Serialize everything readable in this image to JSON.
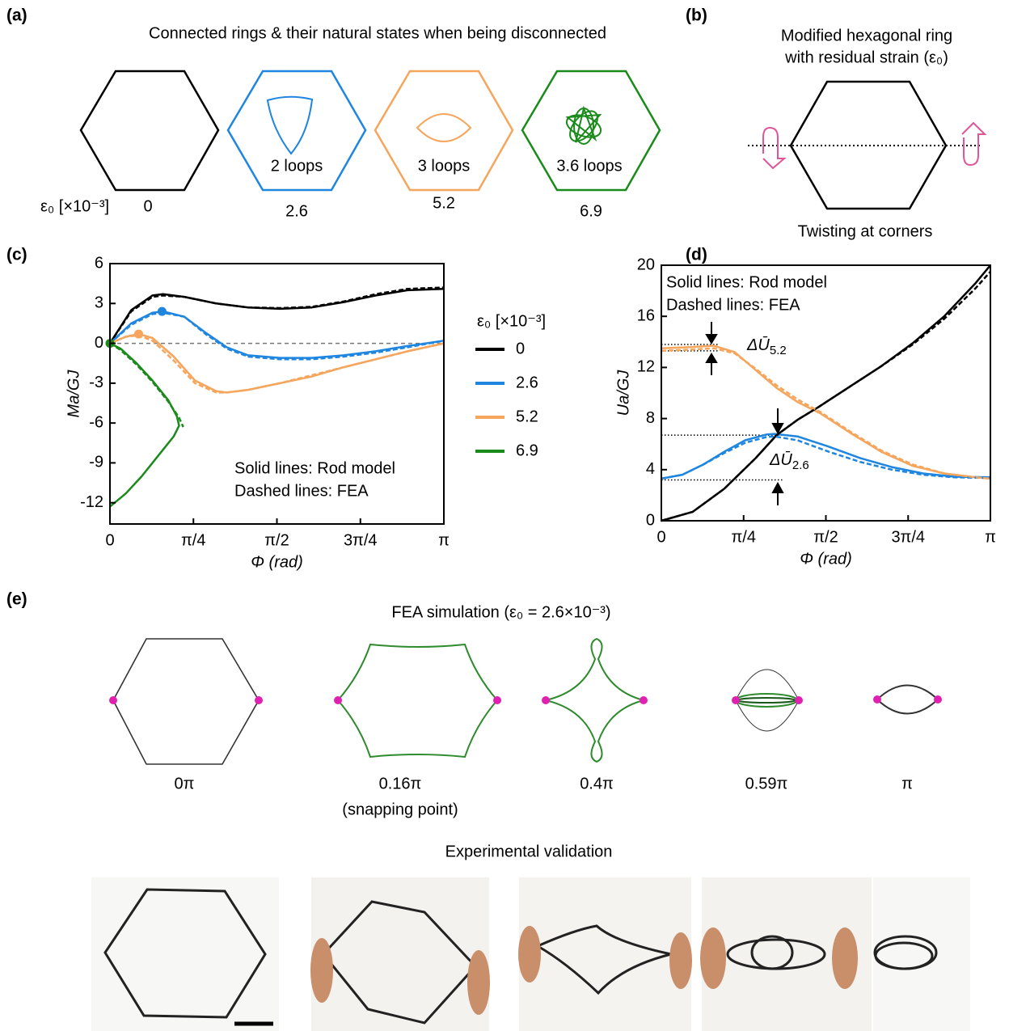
{
  "panels": {
    "a": {
      "label": "(a)",
      "title": "Connected rings & their natural states when being disconnected",
      "row_label": "ε₀ [×10⁻³]",
      "rings": [
        {
          "value": 0
        },
        {
          "value": 2.6,
          "label": "2 loops"
        },
        {
          "value": 5.2,
          "label": "3 loops"
        },
        {
          "value": 6.9,
          "label": "3.6 loops"
        }
      ]
    },
    "b": {
      "label": "(b)",
      "title_lines": [
        "Modified hexagonal ring",
        "with residual strain (ε₀)"
      ],
      "caption": "Twisting at corners"
    },
    "c": {
      "label": "(c)"
    },
    "d": {
      "label": "(d)"
    },
    "e": {
      "label": "(e)",
      "title": "FEA simulation (ε₀ = 2.6×10⁻³)",
      "states": [
        {
          "label": "0π"
        },
        {
          "label": "0.16π",
          "note": "(snapping point)"
        },
        {
          "label": "0.4π"
        },
        {
          "label": "0.59π"
        },
        {
          "label": "π"
        }
      ],
      "subtitle": "Experimental validation"
    }
  },
  "chart_data": [
    {
      "type": "line",
      "xlabel": "Φ (rad)",
      "ylabel": "Ma/GJ",
      "xlim": [
        0,
        3.1416
      ],
      "xticks": [
        0,
        {
          "value": 0.7854,
          "label": "π/4"
        },
        {
          "value": 1.5708,
          "label": "π/2"
        },
        {
          "value": 2.3562,
          "label": "3π/4"
        },
        {
          "value": 3.1416,
          "label": "π"
        }
      ],
      "ylim": [
        -13.6,
        6
      ],
      "yticks": [
        -12,
        -9,
        -6,
        -3,
        0,
        3,
        6
      ],
      "reference_line": 0,
      "legend": "outside-right",
      "legend_title": "ε₀ [×10⁻³]",
      "annotations": [
        "Solid lines: Rod model",
        "Dashed lines: FEA"
      ],
      "series": [
        {
          "name": "0",
          "color": "#000000",
          "x": [
            0,
            0.2,
            0.4,
            0.5,
            0.7,
            1.0,
            1.3,
            1.6,
            1.9,
            2.2,
            2.5,
            2.8,
            3.1416
          ],
          "values": [
            0,
            2.5,
            3.6,
            3.7,
            3.5,
            3.0,
            2.7,
            2.6,
            2.7,
            3.1,
            3.6,
            4.0,
            4.1
          ]
        },
        {
          "name": "2.6",
          "color": "#1f86e0",
          "x": [
            0,
            0.2,
            0.4,
            0.5,
            0.7,
            0.9,
            1.1,
            1.3,
            1.6,
            1.9,
            2.2,
            2.5,
            2.8,
            3.1416
          ],
          "values": [
            0,
            1.5,
            2.3,
            2.4,
            2.0,
            0.8,
            -0.3,
            -0.9,
            -1.1,
            -1.1,
            -0.9,
            -0.6,
            -0.2,
            0.2
          ]
        },
        {
          "name": "5.2",
          "color": "#f5a55c",
          "x": [
            0,
            0.15,
            0.27,
            0.4,
            0.6,
            0.8,
            1.0,
            1.1,
            1.3,
            1.6,
            1.9,
            2.2,
            2.5,
            2.8,
            3.1416
          ],
          "values": [
            0,
            0.5,
            0.7,
            0.4,
            -1.0,
            -2.8,
            -3.6,
            -3.7,
            -3.5,
            -3.0,
            -2.5,
            -1.8,
            -1.2,
            -0.6,
            0
          ]
        },
        {
          "name": "6.9",
          "color": "#1a8a1a",
          "x": [
            0,
            0.1,
            0.25,
            0.4,
            0.55,
            0.63,
            0.65,
            0.6,
            0.45,
            0.3,
            0.15,
            0
          ],
          "values": [
            0,
            -0.4,
            -1.5,
            -2.8,
            -4.3,
            -5.5,
            -6.2,
            -7,
            -8.5,
            -10,
            -11.3,
            -12.3
          ]
        },
        {
          "color": "#000000",
          "dashed": true,
          "x": [
            0,
            0.2,
            0.4,
            0.5,
            0.7,
            1.0,
            1.3,
            1.6,
            1.9,
            2.2,
            2.5,
            2.8,
            3.1416
          ],
          "values": [
            0,
            2.4,
            3.5,
            3.6,
            3.5,
            3.0,
            2.7,
            2.65,
            2.75,
            3.15,
            3.7,
            4.1,
            4.2
          ]
        },
        {
          "color": "#1f86e0",
          "dashed": true,
          "x": [
            0,
            0.2,
            0.4,
            0.5,
            0.7,
            0.9,
            1.1,
            1.3,
            1.6,
            1.9,
            2.2,
            2.5,
            2.8,
            3.1416
          ],
          "values": [
            0,
            1.4,
            2.2,
            2.3,
            2.0,
            0.7,
            -0.4,
            -1.0,
            -1.2,
            -1.2,
            -1.0,
            -0.7,
            -0.3,
            0.2
          ]
        },
        {
          "color": "#f5a55c",
          "dashed": true,
          "x": [
            0,
            0.15,
            0.27,
            0.4,
            0.6,
            0.8,
            1.0,
            1.1,
            1.3,
            1.6,
            1.9,
            2.2,
            2.5,
            2.8,
            3.1416
          ],
          "values": [
            0,
            0.5,
            0.6,
            0.2,
            -1.3,
            -3.0,
            -3.7,
            -3.7,
            -3.5,
            -3.0,
            -2.4,
            -1.8,
            -1.2,
            -0.6,
            0
          ]
        },
        {
          "color": "#1a8a1a",
          "dashed": true,
          "x": [
            0,
            0.1,
            0.25,
            0.4,
            0.55,
            0.65,
            0.69
          ],
          "values": [
            0,
            -0.5,
            -1.6,
            -2.9,
            -4.4,
            -5.6,
            -6.3
          ]
        }
      ],
      "markers": [
        {
          "x": 0.49,
          "y": 2.4,
          "color": "#1f86e0"
        },
        {
          "x": 0.27,
          "y": 0.7,
          "color": "#f5a55c"
        },
        {
          "x": 0,
          "y": 0,
          "color": "#1a8a1a"
        }
      ]
    },
    {
      "type": "line",
      "xlabel": "Φ (rad)",
      "ylabel": "Ua/GJ",
      "xlim": [
        0,
        3.1416
      ],
      "xticks": [
        0,
        {
          "value": 0.7854,
          "label": "π/4"
        },
        {
          "value": 1.5708,
          "label": "π/2"
        },
        {
          "value": 2.3562,
          "label": "3π/4"
        },
        {
          "value": 3.1416,
          "label": "π"
        }
      ],
      "ylim": [
        0,
        20
      ],
      "yticks": [
        0,
        4,
        8,
        12,
        16,
        20
      ],
      "annotations": [
        "Solid lines: Rod model",
        "Dashed lines: FEA"
      ],
      "levels": [
        13.8,
        13.3,
        6.7,
        3.2
      ],
      "gap_labels": [
        {
          "text": "ΔŪ",
          "sub": "5.2"
        },
        {
          "text": "ΔŪ",
          "sub": "2.6"
        }
      ],
      "series": [
        {
          "color": "#000000",
          "x": [
            0,
            0.3,
            0.6,
            0.9,
            1.1,
            1.3,
            1.5,
            1.8,
            2.1,
            2.4,
            2.7,
            3.0,
            3.1416
          ],
          "values": [
            0,
            0.7,
            2.5,
            4.9,
            6.7,
            7.9,
            8.9,
            10.5,
            12.1,
            13.9,
            16.0,
            18.6,
            20.0
          ]
        },
        {
          "color": "#1f86e0",
          "x": [
            0,
            0.2,
            0.4,
            0.6,
            0.8,
            1.0,
            1.08,
            1.3,
            1.6,
            1.9,
            2.2,
            2.5,
            2.8,
            3.1416
          ],
          "values": [
            3.3,
            3.6,
            4.4,
            5.4,
            6.3,
            6.75,
            6.8,
            6.6,
            5.8,
            4.9,
            4.2,
            3.7,
            3.45,
            3.4
          ]
        },
        {
          "color": "#f5a55c",
          "x": [
            0,
            0.3,
            0.5,
            0.7,
            0.9,
            1.1,
            1.3,
            1.52,
            1.8,
            2.1,
            2.4,
            2.7,
            3.0,
            3.1416
          ],
          "values": [
            13.5,
            13.6,
            13.7,
            13.2,
            11.8,
            10.4,
            9.3,
            8.4,
            6.9,
            5.4,
            4.3,
            3.7,
            3.4,
            3.3
          ]
        },
        {
          "color": "#000000",
          "dashed": true,
          "x": [
            0,
            0.3,
            0.6,
            0.9,
            1.1,
            1.3,
            1.5,
            1.8,
            2.1,
            2.4,
            2.7,
            3.0,
            3.1416
          ],
          "values": [
            0,
            0.7,
            2.5,
            4.9,
            6.7,
            7.9,
            8.9,
            10.5,
            12.1,
            13.8,
            15.8,
            18.2,
            19.5
          ]
        },
        {
          "color": "#1f86e0",
          "dashed": true,
          "x": [
            0,
            0.2,
            0.4,
            0.6,
            0.8,
            1.0,
            1.08,
            1.3,
            1.6,
            1.9,
            2.2,
            2.5,
            2.8,
            3.1416
          ],
          "values": [
            3.3,
            3.6,
            4.4,
            5.3,
            6.1,
            6.55,
            6.6,
            6.3,
            5.4,
            4.6,
            4.0,
            3.6,
            3.4,
            3.35
          ]
        },
        {
          "color": "#f5a55c",
          "dashed": true,
          "x": [
            0,
            0.3,
            0.5,
            0.7,
            0.9,
            1.1,
            1.3,
            1.52,
            1.8,
            2.1,
            2.4,
            2.7,
            3.0,
            3.1416
          ],
          "values": [
            13.3,
            13.4,
            13.5,
            13.1,
            11.9,
            10.6,
            9.5,
            8.5,
            7.0,
            5.5,
            4.4,
            3.7,
            3.4,
            3.3
          ]
        }
      ]
    }
  ]
}
